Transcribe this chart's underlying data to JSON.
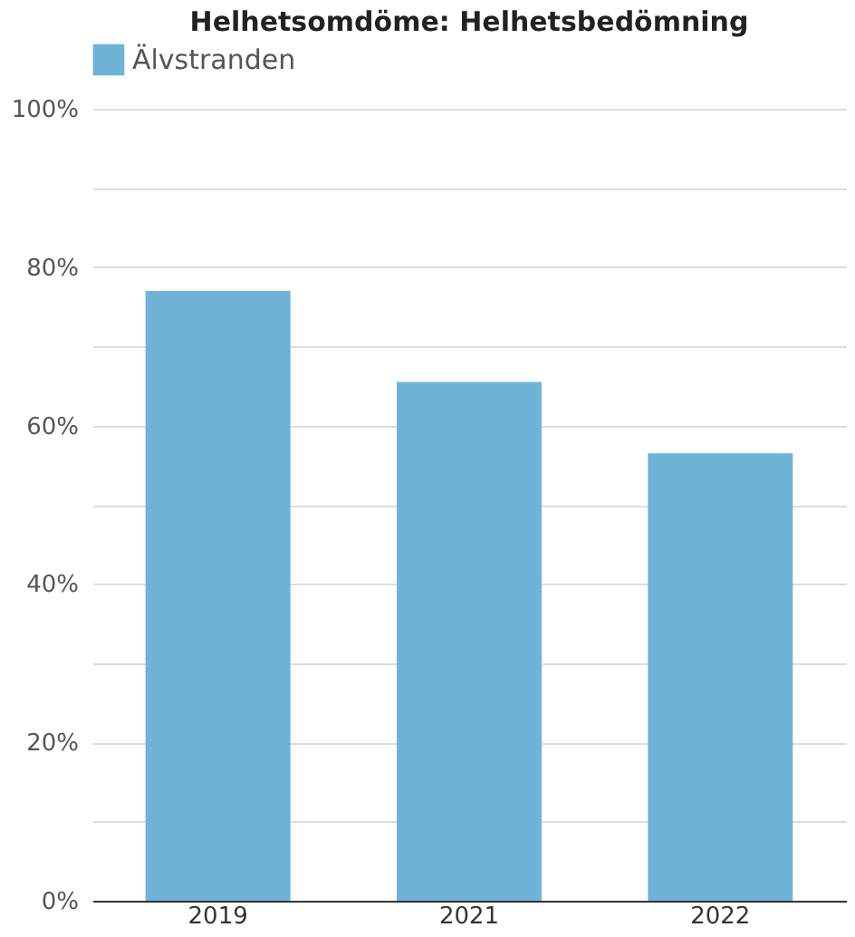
{
  "chart_data": {
    "type": "bar",
    "title": "Helhetsomdöme: Helhetsbedömning",
    "categories": [
      "2019",
      "2021",
      "2022"
    ],
    "series": [
      {
        "name": "Älvstranden",
        "color": "#6fb3d9",
        "values": [
          77,
          65.5,
          56.5
        ]
      }
    ],
    "ylim": [
      0,
      100
    ],
    "yticks": [
      {
        "value": 0,
        "label": "0%"
      },
      {
        "value": 10,
        "label": null
      },
      {
        "value": 20,
        "label": "20%"
      },
      {
        "value": 30,
        "label": null
      },
      {
        "value": 40,
        "label": "40%"
      },
      {
        "value": 50,
        "label": null
      },
      {
        "value": 60,
        "label": "60%"
      },
      {
        "value": 70,
        "label": null
      },
      {
        "value": 80,
        "label": "80%"
      },
      {
        "value": 90,
        "label": null
      },
      {
        "value": 100,
        "label": "100%"
      }
    ],
    "grid": "y",
    "legend": "top"
  }
}
